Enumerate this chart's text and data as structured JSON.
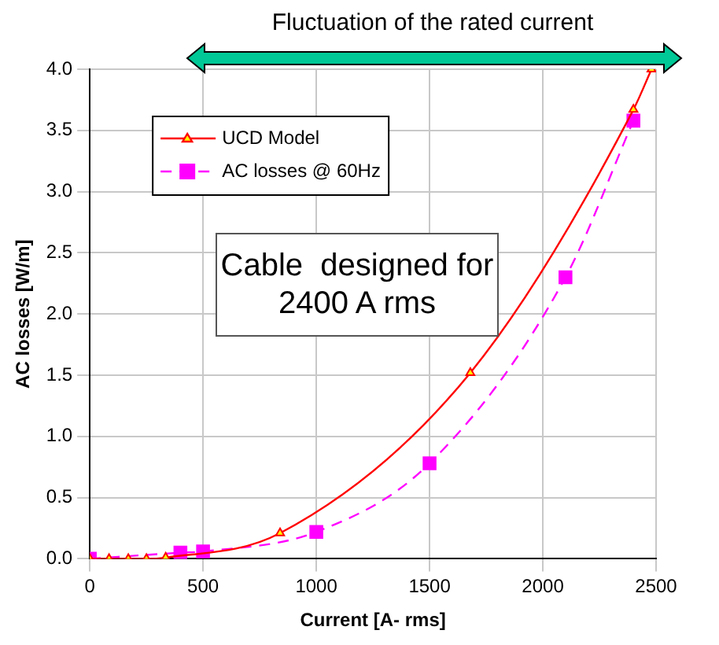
{
  "chart_data": {
    "type": "line",
    "xlabel": "Current [A- rms]",
    "ylabel": "AC losses [W/m]",
    "xlim": [
      0,
      2500
    ],
    "ylim": [
      0,
      4
    ],
    "xticks": [
      0,
      500,
      1000,
      1500,
      2000,
      2500
    ],
    "yticks": [
      {
        "value": 0,
        "label": "0.0"
      },
      {
        "value": 0.5,
        "label": "0.5"
      },
      {
        "value": 1,
        "label": "1.0"
      },
      {
        "value": 1.5,
        "label": "1.5"
      },
      {
        "value": 2,
        "label": "2.0"
      },
      {
        "value": 2.5,
        "label": "2.5"
      },
      {
        "value": 3,
        "label": "3.0"
      },
      {
        "value": 3.5,
        "label": "3.5"
      },
      {
        "value": 4,
        "label": "4.0"
      }
    ],
    "grid": true,
    "legend": "top left",
    "annotations": [
      "Fluctuation of the rated current",
      "Cable  designed for 2400 A rms"
    ],
    "series": [
      {
        "name": "UCD Model",
        "color": "#ff0000",
        "marker": "triangle",
        "line_style": "solid",
        "x": [
          0,
          85,
          170,
          250,
          335,
          840,
          1680,
          2400,
          2480
        ],
        "values": [
          0,
          0,
          0,
          0,
          0.01,
          0.21,
          1.52,
          3.67,
          4.0
        ]
      },
      {
        "name": "AC losses @ 60Hz",
        "color": "#ff00ff",
        "marker": "square",
        "line_style": "dashed",
        "x": [
          0,
          400,
          500,
          1000,
          1500,
          2100,
          2400
        ],
        "values": [
          0,
          0.05,
          0.06,
          0.22,
          0.78,
          2.3,
          3.58
        ]
      }
    ]
  }
}
